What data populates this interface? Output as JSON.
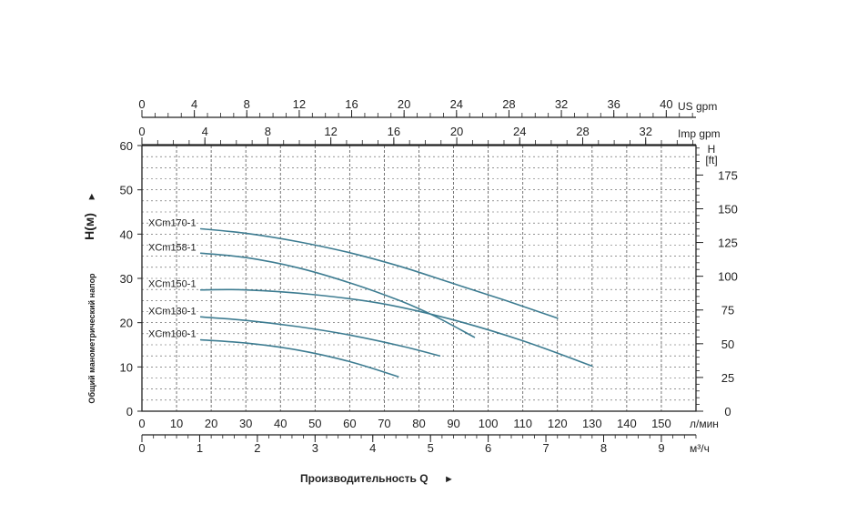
{
  "chart_data": {
    "type": "line",
    "title": "",
    "xlabel": "Производительность Q",
    "ylabel": "Общий манометрический напор",
    "ylabel_symbol": "H(м)",
    "arrow": "►",
    "xlim": [
      0,
      160
    ],
    "ylim": [
      0,
      60
    ],
    "grid": true,
    "axes": {
      "lpm": {
        "unit": "л/мин",
        "ticks": [
          0,
          10,
          20,
          30,
          40,
          50,
          60,
          70,
          80,
          90,
          100,
          110,
          120,
          130,
          140,
          150
        ],
        "per_lpm": 1
      },
      "m3h": {
        "unit": "м³/ч",
        "ticks": [
          0,
          1,
          2,
          3,
          4,
          5,
          6,
          7,
          8,
          9
        ],
        "per_lpm": 0.06
      },
      "us_gpm": {
        "unit": "US gpm",
        "ticks": [
          0,
          4,
          8,
          12,
          16,
          20,
          24,
          28,
          32,
          36,
          40
        ],
        "per_lpm": 0.26417
      },
      "imp_gpm": {
        "unit": "Imp gpm",
        "ticks": [
          0,
          4,
          8,
          12,
          16,
          20,
          24,
          28,
          32
        ],
        "per_lpm": 0.21997
      },
      "head_m": {
        "ticks": [
          0,
          10,
          20,
          30,
          40,
          50,
          60
        ]
      },
      "head_ft": {
        "unit_line1": "H",
        "unit_line2": "[ft]",
        "ticks": [
          0,
          25,
          50,
          75,
          100,
          125,
          150,
          175
        ],
        "per_m": 3.28084
      }
    },
    "series": [
      {
        "name": "XCm170-1",
        "x": [
          17,
          30,
          45,
          60,
          75,
          90,
          105,
          120
        ],
        "y": [
          41.2,
          40.2,
          38.3,
          35.8,
          32.6,
          28.8,
          25,
          21
        ]
      },
      {
        "name": "XCm158-1",
        "x": [
          17,
          30,
          45,
          60,
          75,
          85,
          96
        ],
        "y": [
          35.7,
          34.7,
          32.4,
          29,
          24.8,
          21.3,
          16.7
        ]
      },
      {
        "name": "XCm150-1",
        "x": [
          17,
          30,
          50,
          70,
          90,
          110,
          130
        ],
        "y": [
          27.4,
          27.4,
          26.3,
          24.2,
          20.6,
          15.9,
          10.2
        ]
      },
      {
        "name": "XCm130-1",
        "x": [
          17,
          30,
          45,
          60,
          75,
          86
        ],
        "y": [
          21.3,
          20.5,
          19.1,
          17.2,
          14.7,
          12.5
        ]
      },
      {
        "name": "XCm100-1",
        "x": [
          17,
          30,
          45,
          60,
          74
        ],
        "y": [
          16.1,
          15.4,
          13.8,
          11.2,
          7.8
        ]
      }
    ],
    "colors": {
      "curve": "#3d7c91",
      "grid": "#555555",
      "axis": "#222222"
    }
  }
}
